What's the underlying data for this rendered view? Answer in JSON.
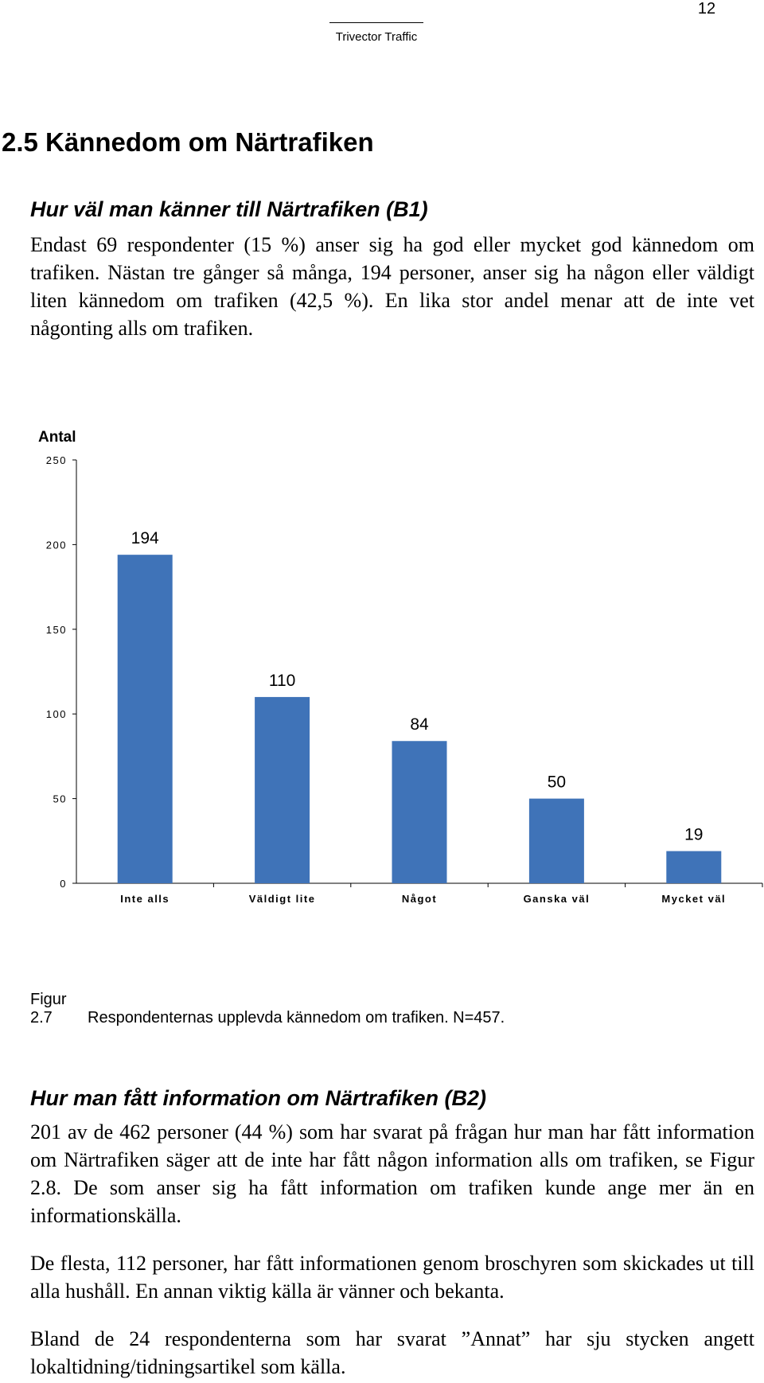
{
  "header": {
    "page_number": "12",
    "company": "Trivector Traffic"
  },
  "section_title": "2.5 Kännedom om Närtrafiken",
  "sub1": {
    "heading": "Hur väl man känner till Närtrafiken (B1)",
    "paragraph": "Endast 69 respondenter (15 %) anser sig ha god eller mycket god kännedom om trafiken. Nästan tre gånger så många, 194 personer, anser sig ha någon eller väldigt liten kännedom om trafiken (42,5 %). En lika stor andel menar att de inte vet någonting alls om trafiken."
  },
  "chart_data": {
    "type": "bar",
    "ylabel": "Antal",
    "xlabel": "",
    "categories": [
      "Inte alls",
      "Väldigt lite",
      "Något",
      "Ganska väl",
      "Mycket väl"
    ],
    "values": [
      194,
      110,
      84,
      50,
      19
    ],
    "value_labels": [
      "194",
      "110",
      "84",
      "50",
      "19"
    ],
    "ylim": [
      0,
      250
    ],
    "yticks": [
      "0",
      "50",
      "100",
      "150",
      "200",
      "250"
    ],
    "bar_color": "#3f73b8",
    "grid": false,
    "legend": "none"
  },
  "caption": {
    "number": "Figur 2.7",
    "text": "Respondenternas upplevda kännedom om trafiken. N=457."
  },
  "sub2": {
    "heading": "Hur man fått information om Närtrafiken (B2)",
    "paragraphs": [
      "201 av de 462 personer (44 %) som har svarat på frågan hur man har fått information om Närtrafiken säger att de inte har fått någon information alls om trafiken, se Figur 2.8. De som anser sig ha fått information om trafiken kunde ange mer än en informationskälla.",
      "De flesta, 112 personer, har fått informationen genom broschyren som skickades ut till alla hushåll. En annan viktig källa är vänner och bekanta.",
      "Bland de 24 respondenterna som har svarat ”Annat” har sju stycken angett lokaltidning/tidningsartikel som källa."
    ]
  }
}
